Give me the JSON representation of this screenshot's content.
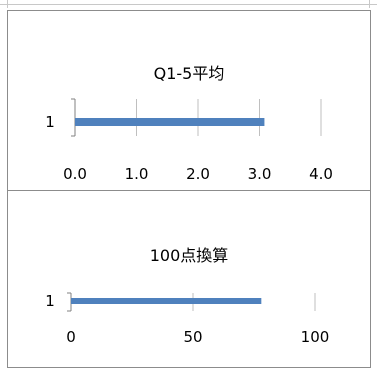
{
  "chart_data": [
    {
      "type": "bar",
      "orientation": "horizontal",
      "title": "Q1-5平均",
      "categories": [
        "1"
      ],
      "series": [
        {
          "values": [
            3.08
          ]
        }
      ],
      "xlim": [
        0,
        4
      ],
      "xticks": [
        "0.0",
        "1.0",
        "2.0",
        "3.0",
        "4.0"
      ],
      "grid": true,
      "bar_color": "#4f81bd"
    },
    {
      "type": "bar",
      "orientation": "horizontal",
      "title": "100点換算",
      "categories": [
        "1"
      ],
      "series": [
        {
          "values": [
            78
          ]
        }
      ],
      "xlim": [
        0,
        100
      ],
      "xticks": [
        "0",
        "50",
        "100"
      ],
      "grid": true,
      "bar_color": "#4f81bd"
    }
  ]
}
